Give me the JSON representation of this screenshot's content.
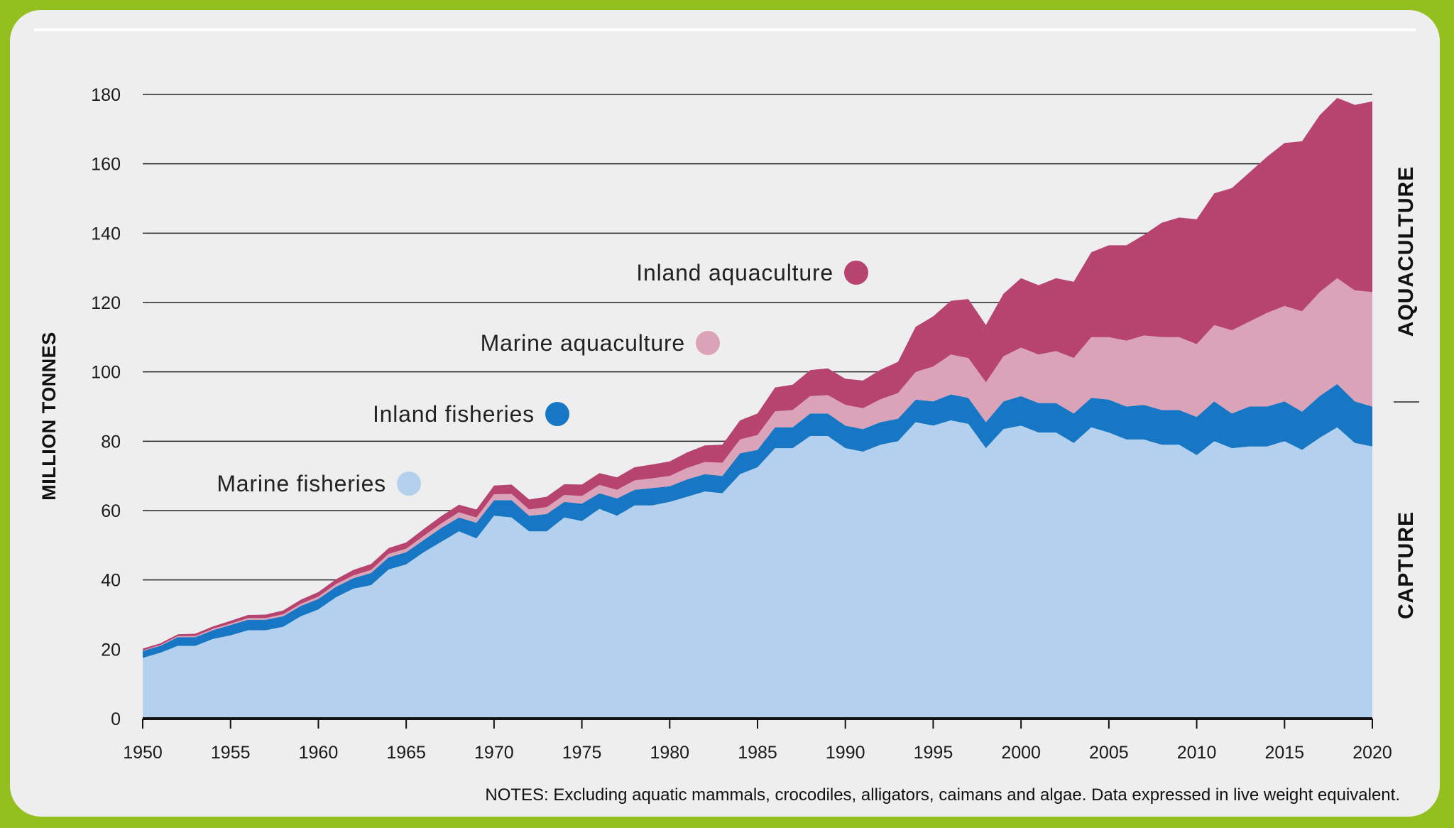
{
  "chart_data": {
    "type": "area",
    "stacked": true,
    "ylabel": "MILLION TONNES",
    "xlabel": "",
    "xlim": [
      1950,
      2020
    ],
    "ylim": [
      0,
      180
    ],
    "yticks": [
      0,
      20,
      40,
      60,
      80,
      100,
      120,
      140,
      160,
      180
    ],
    "xticks": [
      1950,
      1955,
      1960,
      1965,
      1970,
      1975,
      1980,
      1985,
      1990,
      1995,
      2000,
      2005,
      2010,
      2015,
      2020
    ],
    "grid": "horizontal",
    "group_labels": {
      "top": "AQUACULTURE",
      "bottom": "CAPTURE"
    },
    "notes": "NOTES: Excluding aquatic mammals, crocodiles, alligators, caimans and algae. Data expressed in live weight equivalent.",
    "x": [
      1950,
      1951,
      1952,
      1953,
      1954,
      1955,
      1956,
      1957,
      1958,
      1959,
      1960,
      1961,
      1962,
      1963,
      1964,
      1965,
      1966,
      1967,
      1968,
      1969,
      1970,
      1971,
      1972,
      1973,
      1974,
      1975,
      1976,
      1977,
      1978,
      1979,
      1980,
      1981,
      1982,
      1983,
      1984,
      1985,
      1986,
      1987,
      1988,
      1989,
      1990,
      1991,
      1992,
      1993,
      1994,
      1995,
      1996,
      1997,
      1998,
      1999,
      2000,
      2001,
      2002,
      2003,
      2004,
      2005,
      2006,
      2007,
      2008,
      2009,
      2010,
      2011,
      2012,
      2013,
      2014,
      2015,
      2016,
      2017,
      2018,
      2019,
      2020
    ],
    "series": [
      {
        "name": "Marine fisheries",
        "color": "#b3d1ee",
        "values": [
          17.5,
          19,
          21,
          21,
          23,
          24,
          25.5,
          25.5,
          26.5,
          29.5,
          31.5,
          35,
          37.5,
          38.5,
          43,
          44.5,
          48,
          51,
          54,
          52,
          58.5,
          58,
          54,
          54,
          58,
          57,
          60.5,
          58.5,
          61.5,
          61.5,
          62.5,
          64,
          65.5,
          65,
          70.5,
          72.5,
          78,
          78,
          81.5,
          81.5,
          78,
          77,
          79,
          80,
          85.5,
          84.5,
          86,
          85,
          78,
          83.5,
          84.5,
          82.5,
          82.5,
          79.5,
          84,
          82.5,
          80.5,
          80.5,
          79,
          79,
          76,
          80,
          78,
          78.5,
          78.5,
          80,
          77.5,
          81,
          84,
          79.5,
          78.5
        ]
      },
      {
        "name": "Inland fisheries",
        "color": "#1777c4",
        "values": [
          2,
          2,
          2.5,
          2.5,
          2.5,
          3,
          3,
          3,
          3,
          3,
          3,
          3,
          3,
          3.5,
          3.5,
          3.5,
          3.5,
          4,
          4,
          4.5,
          4.5,
          5,
          4.5,
          5,
          4.5,
          5,
          4.5,
          5,
          4.5,
          5,
          4.5,
          5,
          5,
          5,
          6,
          5,
          6,
          6,
          6.5,
          6.5,
          6.5,
          6.5,
          6.5,
          6.5,
          6.5,
          7,
          7.5,
          7.5,
          7.5,
          8,
          8.5,
          8.5,
          8.5,
          8.5,
          8.5,
          9.5,
          9.5,
          10,
          10,
          10,
          11,
          11.5,
          10,
          11.5,
          11.5,
          11.5,
          11,
          12,
          12.5,
          12,
          11.5
        ]
      },
      {
        "name": "Marine aquaculture",
        "color": "#dba3b8",
        "values": [
          0.2,
          0.2,
          0.3,
          0.3,
          0.4,
          0.4,
          0.5,
          0.5,
          0.6,
          0.6,
          0.7,
          0.8,
          0.8,
          0.9,
          1,
          1,
          1.2,
          1.3,
          1.5,
          1.5,
          1.7,
          1.8,
          1.8,
          2,
          2,
          2.2,
          2.4,
          2.5,
          2.7,
          2.8,
          3,
          3.3,
          3.5,
          3.8,
          4,
          4.3,
          4.6,
          5,
          5,
          5.3,
          6,
          6,
          6.6,
          7.4,
          8,
          10,
          11.5,
          11.5,
          11.5,
          13,
          14,
          14,
          15,
          16,
          17.5,
          18,
          19,
          20,
          21,
          21,
          21,
          22,
          24,
          24.5,
          27,
          27.5,
          29,
          30,
          30.5,
          32,
          33
        ]
      },
      {
        "name": "Inland aquaculture",
        "color": "#b7436f",
        "values": [
          0.5,
          0.5,
          0.5,
          0.7,
          0.7,
          0.8,
          0.9,
          1,
          1.1,
          1.2,
          1.3,
          1.4,
          1.6,
          1.7,
          1.7,
          1.8,
          2,
          2.1,
          2.2,
          2.3,
          2.5,
          2.7,
          2.9,
          3,
          3.1,
          3.3,
          3.4,
          3.6,
          3.8,
          4,
          4.2,
          4.5,
          4.8,
          5.2,
          5.5,
          6.2,
          6.9,
          7.3,
          7.5,
          7.7,
          7.5,
          8,
          8.5,
          9,
          13,
          14.5,
          15.5,
          17,
          16.5,
          18,
          20,
          20,
          21,
          22,
          24.5,
          26.5,
          27.5,
          29,
          33,
          34.5,
          36,
          38,
          41,
          43,
          45,
          47,
          49,
          51,
          52,
          53.5,
          55
        ]
      }
    ]
  }
}
